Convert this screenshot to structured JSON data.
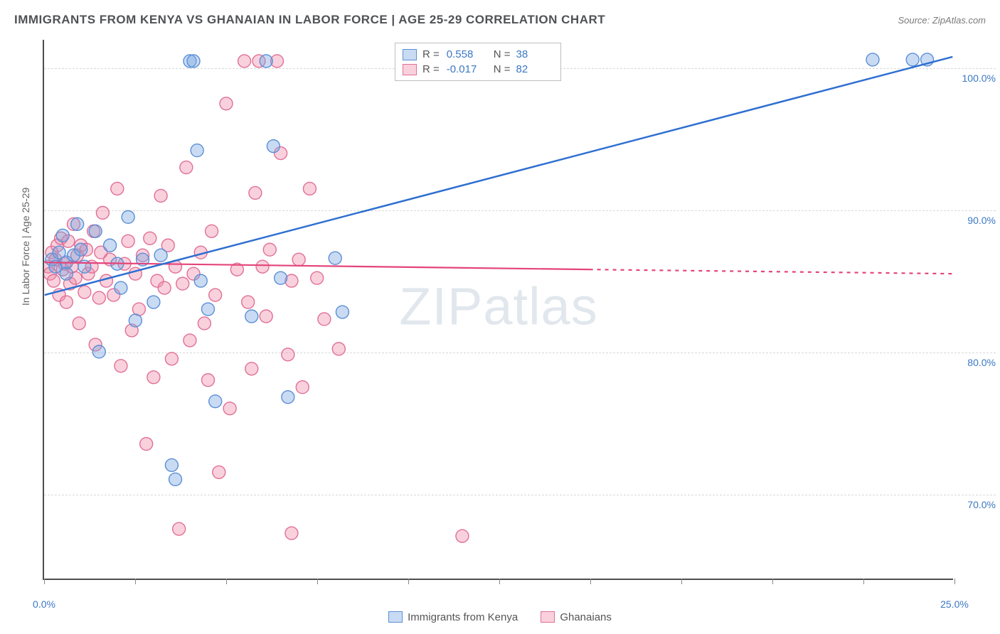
{
  "title": "IMMIGRANTS FROM KENYA VS GHANAIAN IN LABOR FORCE | AGE 25-29 CORRELATION CHART",
  "source": "Source: ZipAtlas.com",
  "ylabel": "In Labor Force | Age 25-29",
  "watermark_a": "ZIP",
  "watermark_b": "atlas",
  "chart": {
    "type": "scatter-with-regression",
    "background_color": "#ffffff",
    "grid_color": "#d8d8d8",
    "axis_color": "#4d4d4d",
    "tick_label_color": "#3b78c4",
    "xlim": [
      0,
      25
    ],
    "ylim": [
      64,
      102
    ],
    "ytick_values": [
      70,
      80,
      90,
      100
    ],
    "ytick_labels": [
      "70.0%",
      "80.0%",
      "90.0%",
      "100.0%"
    ],
    "xtick_values": [
      0,
      2.5,
      5,
      7.5,
      10,
      12.5,
      15,
      17.5,
      20,
      22.5,
      25
    ],
    "xlabel_at_0": "0.0%",
    "xlabel_at_25": "25.0%",
    "marker_radius": 9,
    "marker_stroke_width": 1.4,
    "series": [
      {
        "name": "Immigrants from Kenya",
        "key": "kenya",
        "fill": "rgba(120,165,225,0.40)",
        "stroke": "#5a8fd6",
        "line_color": "#2e6fd1",
        "line_width": 2.5,
        "R": "0.558",
        "N": "38",
        "regression": {
          "x1": 0,
          "y1": 84.0,
          "x2": 25,
          "y2": 100.8
        },
        "points": [
          [
            0.2,
            86.5
          ],
          [
            0.3,
            86.0
          ],
          [
            0.4,
            87.0
          ],
          [
            0.5,
            88.2
          ],
          [
            0.6,
            86.3
          ],
          [
            0.6,
            85.5
          ],
          [
            0.8,
            86.8
          ],
          [
            0.9,
            89.0
          ],
          [
            1.0,
            87.2
          ],
          [
            1.1,
            86.0
          ],
          [
            1.4,
            88.5
          ],
          [
            1.5,
            80.0
          ],
          [
            1.8,
            87.5
          ],
          [
            2.0,
            86.2
          ],
          [
            2.1,
            84.5
          ],
          [
            2.3,
            89.5
          ],
          [
            2.5,
            82.2
          ],
          [
            2.7,
            86.5
          ],
          [
            3.0,
            83.5
          ],
          [
            3.2,
            86.8
          ],
          [
            3.5,
            72.0
          ],
          [
            3.6,
            71.0
          ],
          [
            4.0,
            100.5
          ],
          [
            4.1,
            100.5
          ],
          [
            4.2,
            94.2
          ],
          [
            4.3,
            85.0
          ],
          [
            4.5,
            83.0
          ],
          [
            4.7,
            76.5
          ],
          [
            5.7,
            82.5
          ],
          [
            6.1,
            100.5
          ],
          [
            6.3,
            94.5
          ],
          [
            6.5,
            85.2
          ],
          [
            6.7,
            76.8
          ],
          [
            8.0,
            86.6
          ],
          [
            8.2,
            82.8
          ],
          [
            22.8,
            100.6
          ],
          [
            23.9,
            100.6
          ],
          [
            24.3,
            100.6
          ]
        ]
      },
      {
        "name": "Ghanaians",
        "key": "ghana",
        "fill": "rgba(240,140,170,0.40)",
        "stroke": "#e16f97",
        "line_color": "#e4447a",
        "line_width": 2.2,
        "R": "-0.017",
        "N": "82",
        "regression_solid": {
          "x1": 0,
          "y1": 86.3,
          "x2": 15,
          "y2": 85.8
        },
        "regression_dash": {
          "x1": 15,
          "y1": 85.8,
          "x2": 25,
          "y2": 85.5
        },
        "points": [
          [
            0.1,
            86.0
          ],
          [
            0.15,
            85.5
          ],
          [
            0.2,
            87.0
          ],
          [
            0.25,
            85.0
          ],
          [
            0.3,
            86.5
          ],
          [
            0.35,
            87.5
          ],
          [
            0.4,
            84.0
          ],
          [
            0.45,
            88.0
          ],
          [
            0.5,
            85.8
          ],
          [
            0.55,
            86.2
          ],
          [
            0.6,
            83.5
          ],
          [
            0.65,
            87.8
          ],
          [
            0.7,
            84.8
          ],
          [
            0.75,
            86.0
          ],
          [
            0.8,
            89.0
          ],
          [
            0.85,
            85.2
          ],
          [
            0.9,
            86.8
          ],
          [
            0.95,
            82.0
          ],
          [
            1.0,
            87.5
          ],
          [
            1.1,
            84.2
          ],
          [
            1.15,
            87.2
          ],
          [
            1.2,
            85.5
          ],
          [
            1.3,
            86.0
          ],
          [
            1.35,
            88.5
          ],
          [
            1.4,
            80.5
          ],
          [
            1.5,
            83.8
          ],
          [
            1.55,
            87.0
          ],
          [
            1.6,
            89.8
          ],
          [
            1.7,
            85.0
          ],
          [
            1.8,
            86.5
          ],
          [
            1.9,
            84.0
          ],
          [
            2.0,
            91.5
          ],
          [
            2.1,
            79.0
          ],
          [
            2.2,
            86.2
          ],
          [
            2.3,
            87.8
          ],
          [
            2.4,
            81.5
          ],
          [
            2.5,
            85.5
          ],
          [
            2.6,
            83.0
          ],
          [
            2.7,
            86.8
          ],
          [
            2.8,
            73.5
          ],
          [
            2.9,
            88.0
          ],
          [
            3.0,
            78.2
          ],
          [
            3.1,
            85.0
          ],
          [
            3.2,
            91.0
          ],
          [
            3.3,
            84.5
          ],
          [
            3.4,
            87.5
          ],
          [
            3.5,
            79.5
          ],
          [
            3.6,
            86.0
          ],
          [
            3.7,
            67.5
          ],
          [
            3.8,
            84.8
          ],
          [
            3.9,
            93.0
          ],
          [
            4.0,
            80.8
          ],
          [
            4.1,
            85.5
          ],
          [
            4.3,
            87.0
          ],
          [
            4.4,
            82.0
          ],
          [
            4.5,
            78.0
          ],
          [
            4.6,
            88.5
          ],
          [
            4.7,
            84.0
          ],
          [
            4.8,
            71.5
          ],
          [
            5.0,
            97.5
          ],
          [
            5.1,
            76.0
          ],
          [
            5.3,
            85.8
          ],
          [
            5.5,
            100.5
          ],
          [
            5.6,
            83.5
          ],
          [
            5.7,
            78.8
          ],
          [
            5.8,
            91.2
          ],
          [
            5.9,
            100.5
          ],
          [
            6.0,
            86.0
          ],
          [
            6.1,
            82.5
          ],
          [
            6.2,
            87.2
          ],
          [
            6.4,
            100.5
          ],
          [
            6.5,
            94.0
          ],
          [
            6.7,
            79.8
          ],
          [
            6.8,
            85.0
          ],
          [
            6.8,
            67.2
          ],
          [
            7.0,
            86.5
          ],
          [
            7.1,
            77.5
          ],
          [
            7.3,
            91.5
          ],
          [
            7.5,
            85.2
          ],
          [
            7.7,
            82.3
          ],
          [
            8.1,
            80.2
          ],
          [
            11.5,
            67.0
          ]
        ]
      }
    ]
  },
  "legend_bottom": {
    "series1": "Immigrants from Kenya",
    "series2": "Ghanaians"
  }
}
